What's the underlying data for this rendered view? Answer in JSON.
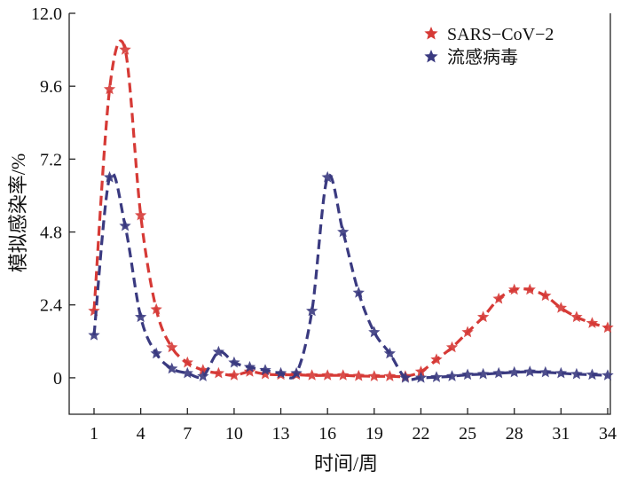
{
  "chart_data": {
    "type": "line",
    "title": "",
    "xlabel": "时间/周",
    "ylabel": "模拟感染率/%",
    "xlim": [
      0,
      34
    ],
    "ylim": [
      -1.2,
      12.0
    ],
    "xticks": [
      1,
      4,
      7,
      10,
      13,
      16,
      19,
      22,
      25,
      28,
      31,
      34
    ],
    "yticks": [
      "0",
      "2.4",
      "4.8",
      "7.2",
      "9.6",
      "12.0"
    ],
    "legend_position": "top-right",
    "x": [
      1,
      2,
      3,
      4,
      5,
      6,
      7,
      8,
      9,
      10,
      11,
      12,
      13,
      14,
      15,
      16,
      17,
      18,
      19,
      20,
      21,
      22,
      23,
      24,
      25,
      26,
      27,
      28,
      29,
      30,
      31,
      32,
      33,
      34
    ],
    "series": [
      {
        "name": "SARS−CoV−2",
        "color": "#d63a36",
        "values": [
          2.2,
          9.5,
          10.8,
          5.35,
          2.25,
          1.0,
          0.5,
          0.25,
          0.15,
          0.08,
          0.2,
          0.12,
          0.1,
          0.1,
          0.08,
          0.08,
          0.08,
          0.06,
          0.05,
          0.05,
          0.05,
          0.2,
          0.6,
          1.0,
          1.5,
          2.0,
          2.6,
          2.9,
          2.9,
          2.7,
          2.3,
          2.0,
          1.8,
          1.65
        ]
      },
      {
        "name": "流感病毒",
        "color": "#3a3a80",
        "values": [
          1.4,
          6.6,
          5.0,
          2.0,
          0.8,
          0.3,
          0.15,
          0.05,
          0.85,
          0.5,
          0.35,
          0.25,
          0.15,
          0.15,
          2.2,
          6.6,
          4.8,
          2.8,
          1.5,
          0.8,
          0.0,
          0.0,
          0.02,
          0.05,
          0.1,
          0.12,
          0.15,
          0.18,
          0.2,
          0.18,
          0.15,
          0.12,
          0.1,
          0.08
        ]
      }
    ]
  }
}
